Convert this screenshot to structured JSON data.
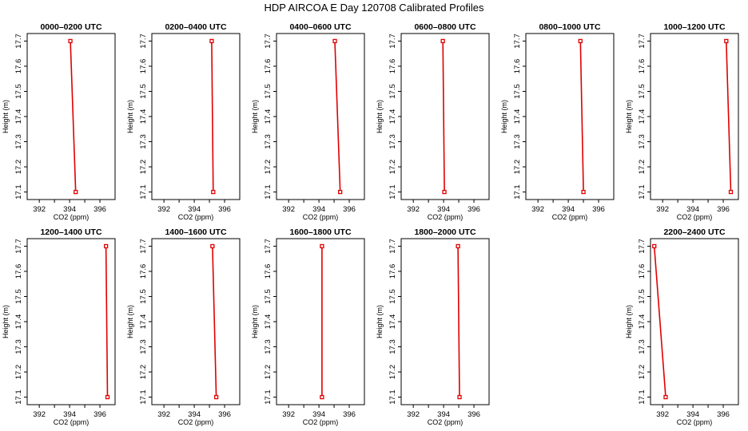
{
  "title": "HDP AIRCOA E  Day 120708  Calibrated Profiles",
  "colors": {
    "profile": "#e00000",
    "axis": "#000000",
    "background": "#ffffff"
  },
  "chart_data": [
    {
      "type": "line",
      "title": "0000–0200 UTC",
      "xlabel": "CO2 (ppm)",
      "ylabel": "Height (m)",
      "xlim": [
        391.2,
        397.0
      ],
      "ylim": [
        17.07,
        17.73
      ],
      "xticks": [
        "392",
        "394",
        "396"
      ],
      "yticks": [
        "17.1",
        "17.2",
        "17.3",
        "17.4",
        "17.5",
        "17.6",
        "17.7"
      ],
      "points": [
        {
          "x": 394.05,
          "y": 17.7
        },
        {
          "x": 394.4,
          "y": 17.1
        }
      ]
    },
    {
      "type": "line",
      "title": "0200–0400 UTC",
      "xlabel": "CO2 (ppm)",
      "ylabel": "Height (m)",
      "xlim": [
        391.2,
        397.0
      ],
      "ylim": [
        17.07,
        17.73
      ],
      "xticks": [
        "392",
        "394",
        "396"
      ],
      "yticks": [
        "17.1",
        "17.2",
        "17.3",
        "17.4",
        "17.5",
        "17.6",
        "17.7"
      ],
      "points": [
        {
          "x": 395.15,
          "y": 17.7
        },
        {
          "x": 395.25,
          "y": 17.1
        }
      ]
    },
    {
      "type": "line",
      "title": "0400–0600 UTC",
      "xlabel": "CO2 (ppm)",
      "ylabel": "Height (m)",
      "xlim": [
        391.2,
        397.0
      ],
      "ylim": [
        17.07,
        17.73
      ],
      "xticks": [
        "392",
        "394",
        "396"
      ],
      "yticks": [
        "17.1",
        "17.2",
        "17.3",
        "17.4",
        "17.5",
        "17.6",
        "17.7"
      ],
      "points": [
        {
          "x": 395.05,
          "y": 17.7
        },
        {
          "x": 395.4,
          "y": 17.1
        }
      ]
    },
    {
      "type": "line",
      "title": "0600–0800 UTC",
      "xlabel": "CO2 (ppm)",
      "ylabel": "Height (m)",
      "xlim": [
        391.2,
        397.0
      ],
      "ylim": [
        17.07,
        17.73
      ],
      "xticks": [
        "392",
        "394",
        "396"
      ],
      "yticks": [
        "17.1",
        "17.2",
        "17.3",
        "17.4",
        "17.5",
        "17.6",
        "17.7"
      ],
      "points": [
        {
          "x": 393.95,
          "y": 17.7
        },
        {
          "x": 394.05,
          "y": 17.1
        }
      ]
    },
    {
      "type": "line",
      "title": "0800–1000 UTC",
      "xlabel": "CO2 (ppm)",
      "ylabel": "Height (m)",
      "xlim": [
        391.2,
        397.0
      ],
      "ylim": [
        17.07,
        17.73
      ],
      "xticks": [
        "392",
        "394",
        "396"
      ],
      "yticks": [
        "17.1",
        "17.2",
        "17.3",
        "17.4",
        "17.5",
        "17.6",
        "17.7"
      ],
      "points": [
        {
          "x": 394.8,
          "y": 17.7
        },
        {
          "x": 395.0,
          "y": 17.1
        }
      ]
    },
    {
      "type": "line",
      "title": "1000–1200 UTC",
      "xlabel": "CO2 (ppm)",
      "ylabel": "Height (m)",
      "xlim": [
        391.2,
        397.0
      ],
      "ylim": [
        17.07,
        17.73
      ],
      "xticks": [
        "392",
        "394",
        "396"
      ],
      "yticks": [
        "17.1",
        "17.2",
        "17.3",
        "17.4",
        "17.5",
        "17.6",
        "17.7"
      ],
      "points": [
        {
          "x": 396.2,
          "y": 17.7
        },
        {
          "x": 396.5,
          "y": 17.1
        }
      ]
    },
    {
      "type": "line",
      "title": "1200–1400 UTC",
      "xlabel": "CO2 (ppm)",
      "ylabel": "Height (m)",
      "xlim": [
        391.2,
        397.0
      ],
      "ylim": [
        17.07,
        17.73
      ],
      "xticks": [
        "392",
        "394",
        "396"
      ],
      "yticks": [
        "17.1",
        "17.2",
        "17.3",
        "17.4",
        "17.5",
        "17.6",
        "17.7"
      ],
      "points": [
        {
          "x": 396.4,
          "y": 17.7
        },
        {
          "x": 396.5,
          "y": 17.1
        }
      ]
    },
    {
      "type": "line",
      "title": "1400–1600 UTC",
      "xlabel": "CO2 (ppm)",
      "ylabel": "Height (m)",
      "xlim": [
        391.2,
        397.0
      ],
      "ylim": [
        17.07,
        17.73
      ],
      "xticks": [
        "392",
        "394",
        "396"
      ],
      "yticks": [
        "17.1",
        "17.2",
        "17.3",
        "17.4",
        "17.5",
        "17.6",
        "17.7"
      ],
      "points": [
        {
          "x": 395.2,
          "y": 17.7
        },
        {
          "x": 395.45,
          "y": 17.1
        }
      ]
    },
    {
      "type": "line",
      "title": "1600–1800 UTC",
      "xlabel": "CO2 (ppm)",
      "ylabel": "Height (m)",
      "xlim": [
        391.2,
        397.0
      ],
      "ylim": [
        17.07,
        17.73
      ],
      "xticks": [
        "392",
        "394",
        "396"
      ],
      "yticks": [
        "17.1",
        "17.2",
        "17.3",
        "17.4",
        "17.5",
        "17.6",
        "17.7"
      ],
      "points": [
        {
          "x": 394.2,
          "y": 17.7
        },
        {
          "x": 394.2,
          "y": 17.1
        }
      ]
    },
    {
      "type": "line",
      "title": "1800–2000 UTC",
      "xlabel": "CO2 (ppm)",
      "ylabel": "Height (m)",
      "xlim": [
        391.2,
        397.0
      ],
      "ylim": [
        17.07,
        17.73
      ],
      "xticks": [
        "392",
        "394",
        "396"
      ],
      "yticks": [
        "17.1",
        "17.2",
        "17.3",
        "17.4",
        "17.5",
        "17.6",
        "17.7"
      ],
      "points": [
        {
          "x": 394.95,
          "y": 17.7
        },
        {
          "x": 395.05,
          "y": 17.1
        }
      ]
    },
    null,
    {
      "type": "line",
      "title": "2200–2400 UTC",
      "xlabel": "CO2 (ppm)",
      "ylabel": "Height (m)",
      "xlim": [
        391.2,
        397.0
      ],
      "ylim": [
        17.07,
        17.73
      ],
      "xticks": [
        "392",
        "394",
        "396"
      ],
      "yticks": [
        "17.1",
        "17.2",
        "17.3",
        "17.4",
        "17.5",
        "17.6",
        "17.7"
      ],
      "points": [
        {
          "x": 391.45,
          "y": 17.7
        },
        {
          "x": 392.2,
          "y": 17.1
        }
      ]
    }
  ]
}
